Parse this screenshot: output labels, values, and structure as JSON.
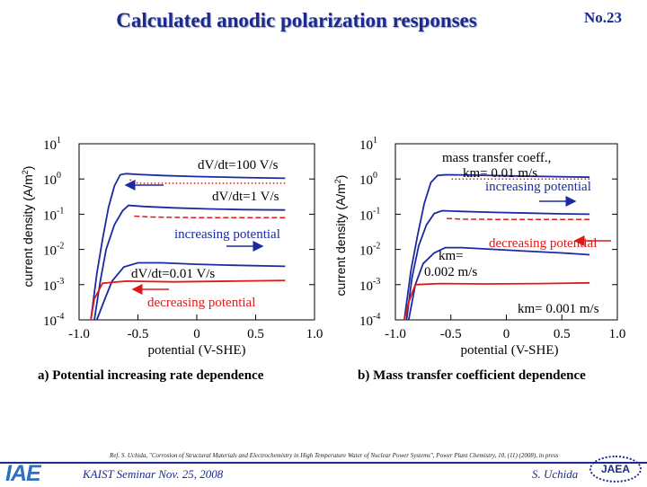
{
  "slide": {
    "title": "Calculated anodic polarization responses",
    "number": "No.23",
    "reference": "Ref. S. Uchida, \"Corrosion of Structural Materials and Electrochemistry in High Temperature Water of Nuclear Power Systems\", Power Plant Chemistry, 10, (11) (2008), in press",
    "seminar": "KAIST Seminar  Nov. 25, 2008",
    "author": "S. Uchida",
    "logo_left": "IAE",
    "logo_right": "JAEA"
  },
  "colors": {
    "increasing": "#1b2aa0",
    "decreasing": "#e01818",
    "title": "#1b2a8c"
  },
  "chart_data": [
    {
      "type": "line",
      "caption": "a) Potential increasing rate dependence",
      "xlabel": "potential  (V-SHE)",
      "ylabel": "current density  (A/m2)",
      "ylabel_base": "current density  (A/m",
      "ylabel_exp": "2",
      "ylabel_tail": ")",
      "xlim": [
        -1.0,
        1.0
      ],
      "ylim_log10": [
        -4,
        1
      ],
      "xticks": [
        "-1.0",
        "-0.5",
        "0",
        "0.5",
        "1.0"
      ],
      "ytick_exponents": [
        "1",
        "0",
        "-1",
        "-2",
        "-3",
        "-4"
      ],
      "ytick_base": "10",
      "annotations": {
        "fast": "dV/dt=100 V/s",
        "mid": "dV/dt=1 V/s",
        "slow": "dV/dt=0.01 V/s",
        "increasing": "increasing potential",
        "decreasing": "decreasing potential"
      },
      "series": [
        {
          "name": "dV/dt=100 V/s increasing",
          "direction": "increasing",
          "style": "solid",
          "points": [
            [
              -0.9,
              -4.0
            ],
            [
              -0.85,
              -2.7
            ],
            [
              -0.8,
              -1.7
            ],
            [
              -0.75,
              -0.8
            ],
            [
              -0.7,
              -0.2
            ],
            [
              -0.65,
              0.12
            ],
            [
              -0.6,
              0.15
            ],
            [
              -0.5,
              0.13
            ],
            [
              -0.3,
              0.1
            ],
            [
              0.0,
              0.07
            ],
            [
              0.4,
              0.04
            ],
            [
              0.75,
              0.02
            ]
          ]
        },
        {
          "name": "dV/dt=100 V/s decreasing",
          "direction": "decreasing",
          "style": "dotted",
          "points": [
            [
              0.75,
              -0.12
            ],
            [
              0.4,
              -0.12
            ],
            [
              0.0,
              -0.12
            ],
            [
              -0.3,
              -0.12
            ],
            [
              -0.5,
              -0.12
            ],
            [
              -0.58,
              0.0
            ]
          ]
        },
        {
          "name": "dV/dt=1 V/s increasing",
          "direction": "increasing",
          "style": "solid",
          "points": [
            [
              -0.87,
              -4.0
            ],
            [
              -0.82,
              -2.9
            ],
            [
              -0.77,
              -2.0
            ],
            [
              -0.7,
              -1.3
            ],
            [
              -0.63,
              -0.9
            ],
            [
              -0.58,
              -0.75
            ],
            [
              -0.45,
              -0.78
            ],
            [
              -0.2,
              -0.82
            ],
            [
              0.1,
              -0.85
            ],
            [
              0.4,
              -0.87
            ],
            [
              0.75,
              -0.88
            ]
          ]
        },
        {
          "name": "dV/dt=1 V/s decreasing",
          "direction": "decreasing",
          "style": "dashed",
          "points": [
            [
              0.75,
              -1.1
            ],
            [
              0.4,
              -1.1
            ],
            [
              0.0,
              -1.1
            ],
            [
              -0.4,
              -1.08
            ],
            [
              -0.55,
              -1.05
            ]
          ]
        },
        {
          "name": "dV/dt=0.01 V/s increasing",
          "direction": "increasing",
          "style": "solid",
          "points": [
            [
              -0.85,
              -4.0
            ],
            [
              -0.78,
              -3.4
            ],
            [
              -0.72,
              -2.9
            ],
            [
              -0.62,
              -2.5
            ],
            [
              -0.5,
              -2.38
            ],
            [
              -0.3,
              -2.38
            ],
            [
              0.0,
              -2.42
            ],
            [
              0.3,
              -2.45
            ],
            [
              0.75,
              -2.48
            ]
          ]
        },
        {
          "name": "dV/dt=0.01 V/s decreasing",
          "direction": "decreasing",
          "style": "solid",
          "points": [
            [
              0.75,
              -2.88
            ],
            [
              0.3,
              -2.9
            ],
            [
              -0.2,
              -2.92
            ],
            [
              -0.6,
              -2.9
            ],
            [
              -0.8,
              -2.96
            ],
            [
              -0.87,
              -3.4
            ],
            [
              -0.9,
              -4.0
            ]
          ]
        }
      ]
    },
    {
      "type": "line",
      "caption": "b) Mass transfer coefficient dependence",
      "xlabel": "potential  (V-SHE)",
      "ylabel": "current density  (A/m2)",
      "ylabel_base": "current density  (A/m",
      "ylabel_exp": "2",
      "ylabel_tail": ")",
      "xlim": [
        -1.0,
        1.0
      ],
      "ylim_log10": [
        -4,
        1
      ],
      "xticks": [
        "-1.0",
        "-0.5",
        "0",
        "0.5",
        "1.0"
      ],
      "ytick_exponents": [
        "1",
        "0",
        "-1",
        "-2",
        "-3",
        "-4"
      ],
      "ytick_base": "10",
      "annotations": {
        "km1_a": "mass transfer coeff.,",
        "km1_b": "km= 0.01 m/s",
        "increasing": "increasing potential",
        "km2_a": "km=",
        "km2_b": "0.002 m/s",
        "decreasing": "decreasing potential",
        "km3": "km= 0.001 m/s"
      },
      "series": [
        {
          "name": "km=0.01 m/s increasing",
          "direction": "increasing",
          "style": "solid",
          "points": [
            [
              -0.92,
              -4.0
            ],
            [
              -0.86,
              -2.6
            ],
            [
              -0.8,
              -1.6
            ],
            [
              -0.74,
              -0.7
            ],
            [
              -0.68,
              -0.1
            ],
            [
              -0.62,
              0.1
            ],
            [
              -0.55,
              0.12
            ],
            [
              -0.3,
              0.11
            ],
            [
              0.0,
              0.09
            ],
            [
              0.4,
              0.07
            ],
            [
              0.75,
              0.05
            ]
          ]
        },
        {
          "name": "km=0.01 m/s decreasing",
          "direction": "decreasing",
          "style": "dotted",
          "points": [
            [
              0.75,
              0.0
            ],
            [
              0.4,
              0.0
            ],
            [
              0.0,
              0.0
            ],
            [
              -0.3,
              0.0
            ],
            [
              -0.5,
              0.0
            ]
          ]
        },
        {
          "name": "km=0.002 m/s increasing",
          "direction": "increasing",
          "style": "solid",
          "points": [
            [
              -0.9,
              -4.0
            ],
            [
              -0.85,
              -2.8
            ],
            [
              -0.79,
              -1.9
            ],
            [
              -0.72,
              -1.3
            ],
            [
              -0.65,
              -0.98
            ],
            [
              -0.58,
              -0.9
            ],
            [
              -0.4,
              -0.92
            ],
            [
              -0.1,
              -0.95
            ],
            [
              0.2,
              -0.97
            ],
            [
              0.5,
              -0.99
            ],
            [
              0.75,
              -1.0
            ]
          ]
        },
        {
          "name": "km=0.002 m/s decreasing",
          "direction": "decreasing",
          "style": "dashed",
          "points": [
            [
              0.75,
              -1.15
            ],
            [
              0.4,
              -1.15
            ],
            [
              0.0,
              -1.15
            ],
            [
              -0.4,
              -1.14
            ],
            [
              -0.55,
              -1.12
            ]
          ]
        },
        {
          "name": "km=0.001 m/s increasing",
          "direction": "increasing",
          "style": "solid",
          "points": [
            [
              -0.88,
              -4.0
            ],
            [
              -0.82,
              -3.0
            ],
            [
              -0.75,
              -2.4
            ],
            [
              -0.65,
              -2.1
            ],
            [
              -0.55,
              -1.95
            ],
            [
              -0.4,
              -1.95
            ],
            [
              -0.1,
              -2.0
            ],
            [
              0.2,
              -2.05
            ],
            [
              0.5,
              -2.1
            ],
            [
              0.75,
              -2.15
            ]
          ]
        },
        {
          "name": "km=0.001 m/s decreasing",
          "direction": "decreasing",
          "style": "solid",
          "points": [
            [
              0.75,
              -2.95
            ],
            [
              0.3,
              -2.97
            ],
            [
              -0.2,
              -2.98
            ],
            [
              -0.6,
              -2.97
            ],
            [
              -0.82,
              -3.0
            ],
            [
              -0.88,
              -3.5
            ],
            [
              -0.92,
              -4.0
            ]
          ]
        }
      ]
    }
  ]
}
